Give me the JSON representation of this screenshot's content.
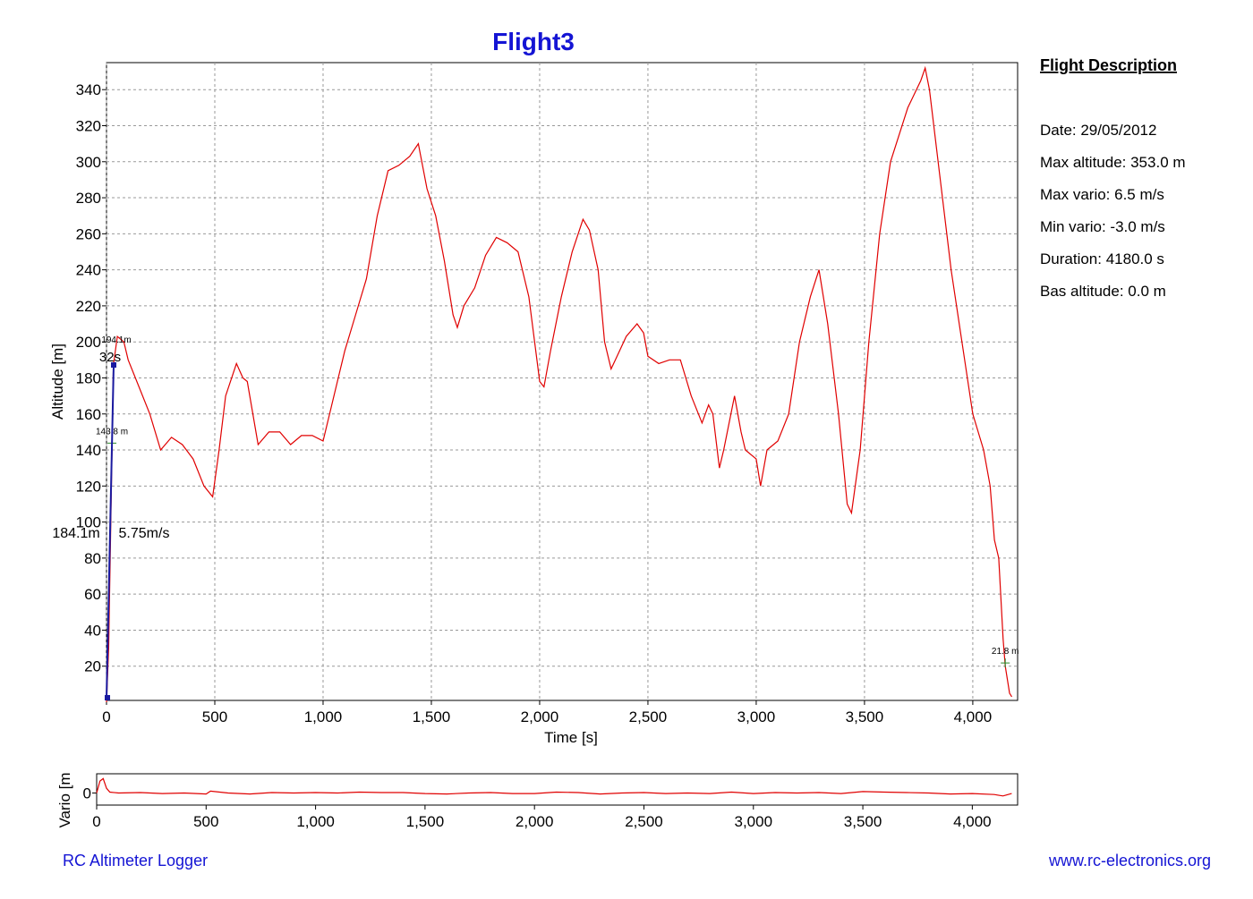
{
  "chart_data": [
    {
      "type": "line",
      "title": "Flight3",
      "x_label": "Time [s]",
      "y_label": "Altitude [m]",
      "xlim": [
        0,
        4207
      ],
      "ylim": [
        1,
        355
      ],
      "grid": true,
      "xticks": [
        0,
        500,
        {
          "value": 1000,
          "label": "1,000"
        },
        {
          "value": 1500,
          "label": "1,500"
        },
        {
          "value": 2000,
          "label": "2,000"
        },
        {
          "value": 2500,
          "label": "2,500"
        },
        {
          "value": 3000,
          "label": "3,000"
        },
        {
          "value": 3500,
          "label": "3,500"
        },
        {
          "value": 4000,
          "label": "4,000"
        }
      ],
      "yticks": [
        20,
        40,
        60,
        80,
        100,
        120,
        140,
        160,
        180,
        200,
        220,
        240,
        260,
        280,
        300,
        320,
        340
      ],
      "x": [
        0,
        10,
        20,
        32,
        50,
        80,
        100,
        150,
        200,
        250,
        300,
        350,
        400,
        450,
        490,
        520,
        550,
        600,
        630,
        650,
        700,
        750,
        800,
        850,
        900,
        950,
        1000,
        1050,
        1100,
        1150,
        1200,
        1250,
        1300,
        1350,
        1400,
        1440,
        1480,
        1520,
        1560,
        1600,
        1620,
        1650,
        1700,
        1750,
        1800,
        1850,
        1900,
        1950,
        2000,
        2020,
        2050,
        2100,
        2150,
        2200,
        2230,
        2270,
        2300,
        2330,
        2350,
        2400,
        2450,
        2480,
        2500,
        2550,
        2600,
        2650,
        2700,
        2750,
        2780,
        2800,
        2830,
        2850,
        2900,
        2930,
        2950,
        3000,
        3020,
        3050,
        3100,
        3150,
        3200,
        3250,
        3290,
        3330,
        3380,
        3420,
        3440,
        3480,
        3520,
        3570,
        3620,
        3700,
        3760,
        3780,
        3800,
        3850,
        3900,
        3950,
        4000,
        4050,
        4080,
        4100,
        4120,
        4140,
        4150,
        4170,
        4180
      ],
      "series": [
        {
          "name": "Altitude",
          "color": "#e00000",
          "values": [
            0,
            30,
            100,
            187,
            203,
            200,
            190,
            175,
            160,
            140,
            147,
            143,
            135,
            120,
            114,
            140,
            170,
            188,
            180,
            178,
            143,
            150,
            150,
            143,
            148,
            148,
            145,
            170,
            195,
            215,
            235,
            270,
            295,
            298,
            303,
            310,
            285,
            270,
            245,
            215,
            208,
            220,
            230,
            248,
            258,
            255,
            250,
            225,
            178,
            175,
            195,
            225,
            250,
            268,
            262,
            240,
            200,
            185,
            190,
            203,
            210,
            205,
            192,
            188,
            190,
            190,
            170,
            155,
            165,
            160,
            130,
            140,
            170,
            150,
            140,
            135,
            120,
            140,
            145,
            160,
            200,
            225,
            240,
            210,
            160,
            110,
            105,
            140,
            200,
            260,
            300,
            330,
            345,
            352,
            340,
            290,
            240,
            200,
            160,
            140,
            120,
            90,
            80,
            35,
            20,
            5,
            3
          ]
        }
      ],
      "markers": [
        {
          "x": 25,
          "y": 143.8,
          "label": "143.8 m"
        },
        {
          "x": 4150,
          "y": 21.8,
          "label": "21.8 m"
        }
      ],
      "cursor_labels": [
        "194.1m",
        "32s",
        "184.1m",
        "5.75m/s"
      ]
    },
    {
      "type": "line",
      "y_label": "Vario [m",
      "xlim": [
        0,
        4207
      ],
      "ylim": [
        -2.5,
        4
      ],
      "xticks": [
        0,
        500,
        {
          "value": 1000,
          "label": "1,000"
        },
        {
          "value": 1500,
          "label": "1,500"
        },
        {
          "value": 2000,
          "label": "2,000"
        },
        {
          "value": 2500,
          "label": "2,500"
        },
        {
          "value": 3000,
          "label": "3,000"
        },
        {
          "value": 3500,
          "label": "3,500"
        },
        {
          "value": 4000,
          "label": "4,000"
        }
      ],
      "yticks": [
        0
      ],
      "x": [
        0,
        15,
        30,
        45,
        60,
        100,
        200,
        300,
        400,
        500,
        520,
        600,
        700,
        800,
        900,
        1000,
        1100,
        1200,
        1300,
        1400,
        1500,
        1600,
        1700,
        1800,
        1900,
        2000,
        2100,
        2200,
        2300,
        2400,
        2500,
        2600,
        2700,
        2800,
        2900,
        3000,
        3100,
        3200,
        3300,
        3400,
        3500,
        3600,
        3700,
        3800,
        3900,
        4000,
        4100,
        4140,
        4180
      ],
      "series": [
        {
          "name": "Vario",
          "color": "#e00000",
          "values": [
            0,
            2.5,
            3,
            1,
            0.2,
            0,
            0.1,
            -0.1,
            0,
            -0.2,
            0.4,
            0,
            -0.2,
            0.1,
            0,
            0.1,
            0,
            0.2,
            0.1,
            0.1,
            -0.1,
            -0.2,
            0,
            0.1,
            -0.1,
            -0.1,
            0.2,
            0.1,
            -0.2,
            0,
            0.1,
            -0.1,
            0,
            -0.1,
            0.2,
            -0.1,
            0.1,
            0,
            0.1,
            -0.1,
            0.3,
            0.2,
            0.1,
            0,
            -0.2,
            -0.1,
            -0.3,
            -0.6,
            -0.1
          ]
        }
      ]
    }
  ],
  "description": {
    "title": "Flight Description",
    "items": [
      "Date: 29/05/2012",
      "Max altitude: 353.0 m",
      "Max vario: 6.5 m/s",
      "Min vario: -3.0 m/s",
      "Duration: 4180.0 s",
      "Bas altitude: 0.0 m"
    ]
  },
  "footer": {
    "left": "RC Altimeter Logger",
    "right": "www.rc-electronics.org"
  }
}
